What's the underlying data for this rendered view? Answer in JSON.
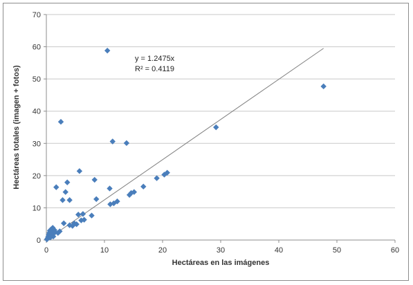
{
  "chart_data": {
    "type": "scatter",
    "xlabel": "Hectáreas en las imágenes",
    "ylabel": "Hectáreas totales (imagen + fotos)",
    "xlim": [
      0,
      60
    ],
    "ylim": [
      0,
      70
    ],
    "x_ticks": [
      "0",
      "10",
      "20",
      "30",
      "40",
      "50",
      "60"
    ],
    "y_ticks": [
      "0",
      "10",
      "20",
      "30",
      "40",
      "50",
      "60",
      "70"
    ],
    "grid": "horizontal",
    "marker_color": "#4a7ebb",
    "trendline": {
      "equation": "y = 1.2475x",
      "r2": "R² = 0.4119",
      "slope": 1.2475,
      "x_range": [
        0,
        47.7
      ],
      "color": "#7f7f7f"
    },
    "points": [
      [
        0.1,
        0.2
      ],
      [
        0.2,
        0.5
      ],
      [
        0.3,
        1.0
      ],
      [
        0.4,
        1.6
      ],
      [
        0.5,
        2.2
      ],
      [
        0.6,
        2.9
      ],
      [
        0.7,
        0.8
      ],
      [
        0.8,
        3.3
      ],
      [
        0.9,
        1.3
      ],
      [
        1.0,
        2.0
      ],
      [
        1.1,
        3.8
      ],
      [
        1.2,
        1.1
      ],
      [
        1.3,
        2.6
      ],
      [
        1.4,
        3.1
      ],
      [
        1.5,
        2.4
      ],
      [
        1.7,
        16.4
      ],
      [
        2.0,
        2.2
      ],
      [
        2.3,
        2.7
      ],
      [
        2.5,
        36.7
      ],
      [
        2.8,
        12.4
      ],
      [
        3.0,
        5.2
      ],
      [
        3.3,
        14.9
      ],
      [
        3.6,
        17.9
      ],
      [
        4.0,
        4.6
      ],
      [
        4.0,
        12.4
      ],
      [
        4.5,
        4.4
      ],
      [
        4.8,
        5.2
      ],
      [
        5.2,
        4.9
      ],
      [
        5.5,
        7.9
      ],
      [
        5.7,
        21.4
      ],
      [
        6.0,
        6.1
      ],
      [
        6.3,
        8.1
      ],
      [
        6.5,
        6.3
      ],
      [
        7.8,
        7.6
      ],
      [
        8.3,
        18.7
      ],
      [
        8.6,
        12.7
      ],
      [
        10.5,
        58.8
      ],
      [
        10.9,
        16.0
      ],
      [
        11.0,
        11.1
      ],
      [
        11.4,
        30.6
      ],
      [
        11.6,
        11.4
      ],
      [
        12.2,
        12.0
      ],
      [
        13.8,
        30.1
      ],
      [
        14.3,
        14.0
      ],
      [
        14.6,
        14.6
      ],
      [
        15.1,
        14.9
      ],
      [
        16.7,
        16.6
      ],
      [
        19.0,
        19.2
      ],
      [
        20.3,
        20.3
      ],
      [
        20.8,
        20.9
      ],
      [
        29.2,
        35.0
      ],
      [
        47.7,
        47.7
      ]
    ]
  }
}
